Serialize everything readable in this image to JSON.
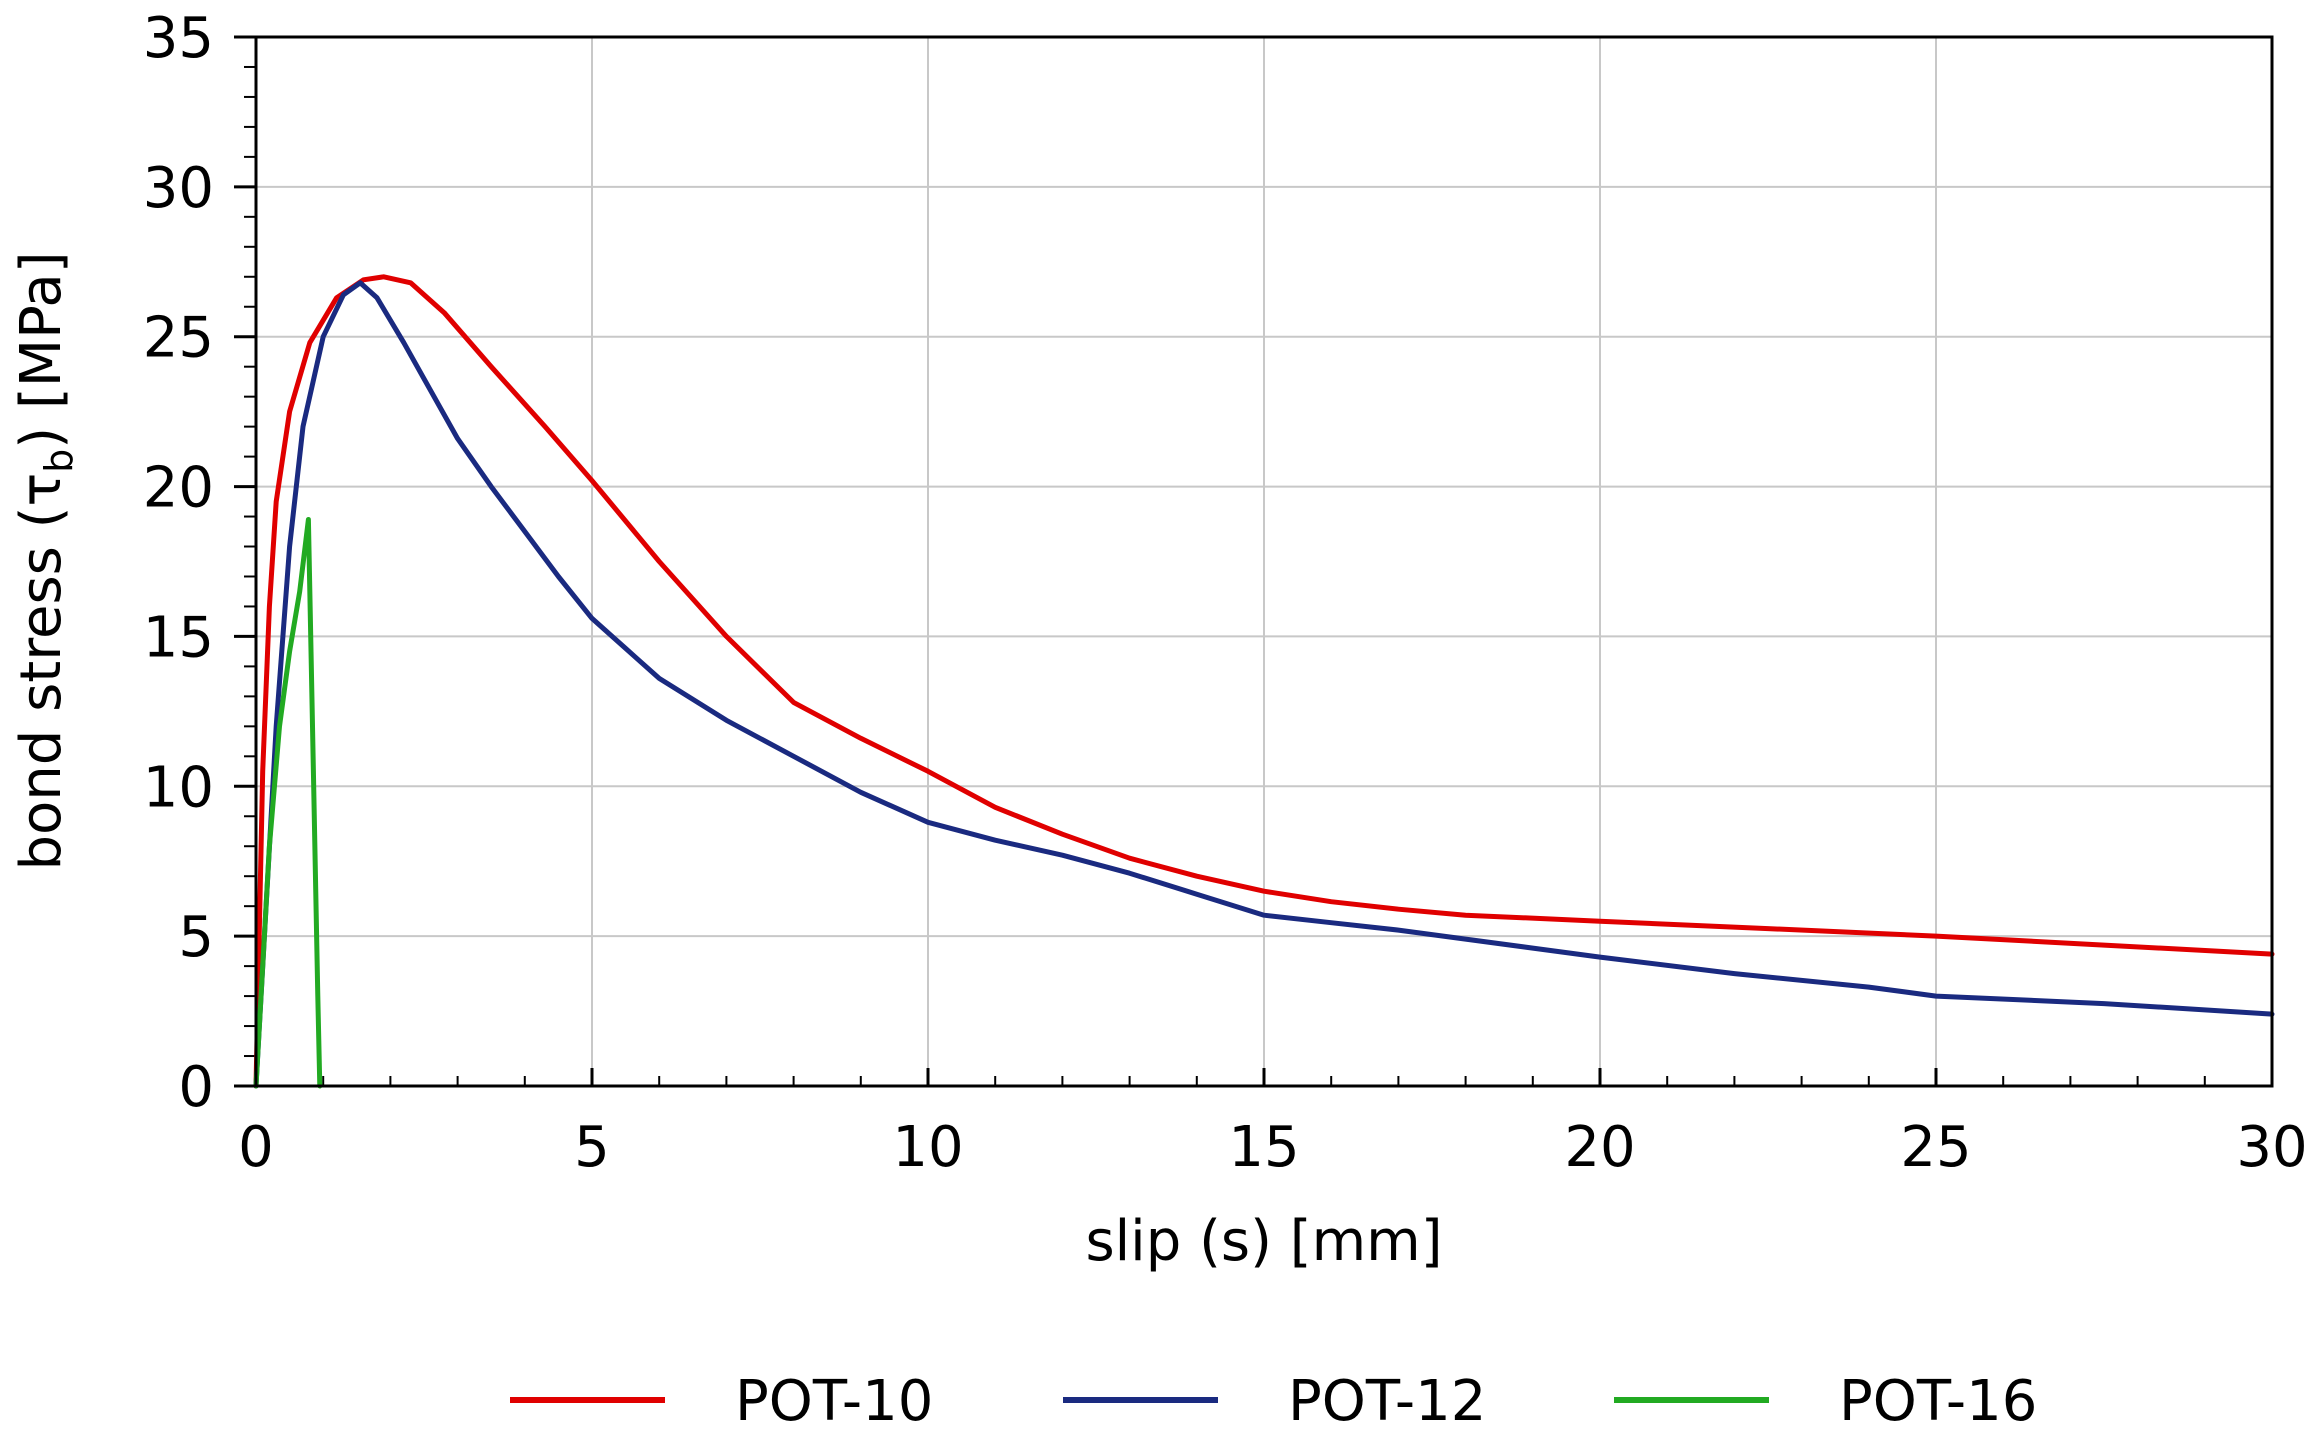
{
  "chart_data": {
    "type": "line",
    "title": "",
    "xlabel": "slip (s) [mm]",
    "ylabel": {
      "prefix": "bond stress (τ",
      "subscript": "b",
      "suffix": ") [MPa]"
    },
    "xlim": [
      0,
      30
    ],
    "ylim": [
      0,
      35
    ],
    "xticks": [
      0,
      5,
      10,
      15,
      20,
      25,
      30
    ],
    "yticks": [
      0,
      5,
      10,
      15,
      20,
      25,
      30,
      35
    ],
    "grid": true,
    "legend_position": "bottom",
    "series": [
      {
        "name": "POT-10",
        "color": "#e00000",
        "points": [
          [
            0,
            0
          ],
          [
            0.1,
            10.5
          ],
          [
            0.2,
            16
          ],
          [
            0.3,
            19.5
          ],
          [
            0.5,
            22.5
          ],
          [
            0.8,
            24.8
          ],
          [
            1.2,
            26.3
          ],
          [
            1.6,
            26.9
          ],
          [
            1.9,
            27.0
          ],
          [
            2.3,
            26.8
          ],
          [
            2.8,
            25.8
          ],
          [
            3.5,
            24.0
          ],
          [
            4.3,
            22.0
          ],
          [
            5.0,
            20.2
          ],
          [
            6.0,
            17.5
          ],
          [
            7.0,
            15.0
          ],
          [
            8.0,
            12.8
          ],
          [
            9.0,
            11.6
          ],
          [
            10.0,
            10.5
          ],
          [
            11.0,
            9.3
          ],
          [
            12.0,
            8.4
          ],
          [
            13.0,
            7.6
          ],
          [
            14.0,
            7.0
          ],
          [
            15.0,
            6.5
          ],
          [
            16.0,
            6.15
          ],
          [
            17.0,
            5.9
          ],
          [
            18.0,
            5.7
          ],
          [
            20.0,
            5.5
          ],
          [
            22.5,
            5.25
          ],
          [
            25.0,
            5.0
          ],
          [
            27.5,
            4.7
          ],
          [
            30.0,
            4.4
          ]
        ]
      },
      {
        "name": "POT-12",
        "color": "#1a2a80",
        "points": [
          [
            0,
            0
          ],
          [
            0.15,
            6
          ],
          [
            0.3,
            12
          ],
          [
            0.5,
            18
          ],
          [
            0.7,
            22
          ],
          [
            1.0,
            25
          ],
          [
            1.3,
            26.4
          ],
          [
            1.55,
            26.8
          ],
          [
            1.8,
            26.3
          ],
          [
            2.2,
            24.8
          ],
          [
            2.6,
            23.2
          ],
          [
            3.0,
            21.6
          ],
          [
            3.5,
            20.0
          ],
          [
            4.0,
            18.5
          ],
          [
            4.5,
            17.0
          ],
          [
            5.0,
            15.6
          ],
          [
            5.5,
            14.6
          ],
          [
            6.0,
            13.6
          ],
          [
            7.0,
            12.2
          ],
          [
            8.0,
            11.0
          ],
          [
            9.0,
            9.8
          ],
          [
            10.0,
            8.8
          ],
          [
            11.0,
            8.2
          ],
          [
            12.0,
            7.7
          ],
          [
            13.0,
            7.1
          ],
          [
            14.0,
            6.4
          ],
          [
            15.0,
            5.7
          ],
          [
            16.0,
            5.45
          ],
          [
            17.0,
            5.2
          ],
          [
            18.0,
            4.9
          ],
          [
            19.0,
            4.6
          ],
          [
            20.0,
            4.3
          ],
          [
            22.0,
            3.75
          ],
          [
            24.0,
            3.3
          ],
          [
            25.0,
            3.0
          ],
          [
            27.5,
            2.75
          ],
          [
            30.0,
            2.4
          ]
        ]
      },
      {
        "name": "POT-16",
        "color": "#22aa22",
        "points": [
          [
            0,
            0
          ],
          [
            0.1,
            4
          ],
          [
            0.2,
            8
          ],
          [
            0.35,
            12
          ],
          [
            0.5,
            14.5
          ],
          [
            0.65,
            16.5
          ],
          [
            0.78,
            18.9
          ],
          [
            0.85,
            11
          ],
          [
            0.92,
            3
          ],
          [
            0.95,
            0
          ]
        ]
      }
    ]
  }
}
